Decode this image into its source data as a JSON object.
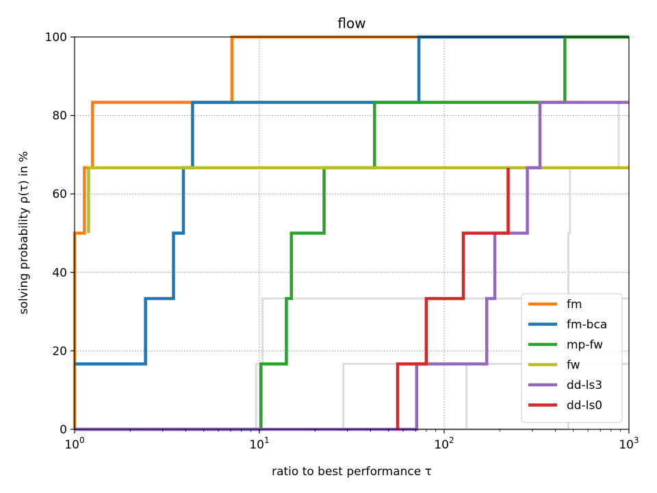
{
  "chart_data": {
    "type": "line",
    "title": "flow",
    "xlabel": "ratio to best performance τ",
    "ylabel": "solving probability ρ(τ) in %",
    "xscale": "log",
    "xlim": [
      1,
      1000
    ],
    "ylim": [
      0,
      100
    ],
    "x_ticks": [
      {
        "base": "10",
        "exp": "0",
        "value": 1
      },
      {
        "base": "10",
        "exp": "1",
        "value": 10
      },
      {
        "base": "10",
        "exp": "2",
        "value": 100
      },
      {
        "base": "10",
        "exp": "3",
        "value": 1000
      }
    ],
    "y_ticks": [
      "0",
      "20",
      "40",
      "60",
      "80",
      "100"
    ],
    "y_tick_values": [
      0,
      20,
      40,
      60,
      80,
      100
    ],
    "grid": "dotted",
    "legend_position": "bottom-right",
    "background_series": [
      {
        "color": "#dcdcdc",
        "steps": [
          [
            1,
            0
          ],
          [
            9.6,
            0
          ],
          [
            9.6,
            16.67
          ],
          [
            10.4,
            16.67
          ],
          [
            10.4,
            33.33
          ],
          [
            1000,
            33.33
          ]
        ]
      },
      {
        "color": "#dcdcdc",
        "steps": [
          [
            1,
            0
          ],
          [
            28.5,
            0
          ],
          [
            28.5,
            16.67
          ],
          [
            1000,
            16.67
          ]
        ]
      },
      {
        "color": "#dcdcdc",
        "steps": [
          [
            1,
            0
          ],
          [
            132,
            0
          ],
          [
            132,
            16.67
          ],
          [
            1000,
            16.67
          ]
        ]
      },
      {
        "color": "#dcdcdc",
        "steps": [
          [
            1,
            0
          ],
          [
            470,
            0
          ],
          [
            470,
            50
          ],
          [
            480,
            50
          ],
          [
            480,
            66.67
          ],
          [
            1000,
            66.67
          ]
        ]
      },
      {
        "color": "#dcdcdc",
        "steps": [
          [
            200,
            33.33
          ],
          [
            1000,
            33.33
          ]
        ]
      },
      {
        "color": "#dcdcdc",
        "steps": [
          [
            880,
            66.67
          ],
          [
            880,
            83.33
          ],
          [
            1000,
            83.33
          ]
        ]
      }
    ],
    "series": [
      {
        "name": "fm",
        "color": "#ff7f0e",
        "steps": [
          [
            1,
            0
          ],
          [
            1,
            50
          ],
          [
            1.13,
            50
          ],
          [
            1.13,
            66.67
          ],
          [
            1.25,
            66.67
          ],
          [
            1.25,
            83.33
          ],
          [
            7.1,
            83.33
          ],
          [
            7.1,
            100
          ],
          [
            1000,
            100
          ]
        ]
      },
      {
        "name": "fm-bca",
        "color": "#1f77b4",
        "steps": [
          [
            1,
            16.67
          ],
          [
            2.42,
            16.67
          ],
          [
            2.42,
            33.33
          ],
          [
            3.43,
            33.33
          ],
          [
            3.43,
            50
          ],
          [
            3.88,
            50
          ],
          [
            3.88,
            66.67
          ],
          [
            4.35,
            66.67
          ],
          [
            4.35,
            83.33
          ],
          [
            73,
            83.33
          ],
          [
            73,
            100
          ],
          [
            1000,
            100
          ]
        ]
      },
      {
        "name": "mp-fw",
        "color": "#2ca02c",
        "steps": [
          [
            1,
            0
          ],
          [
            10.2,
            0
          ],
          [
            10.2,
            16.67
          ],
          [
            14,
            16.67
          ],
          [
            14,
            33.33
          ],
          [
            14.9,
            33.33
          ],
          [
            14.9,
            50
          ],
          [
            22.4,
            50
          ],
          [
            22.4,
            66.67
          ],
          [
            42,
            66.67
          ],
          [
            42,
            83.33
          ],
          [
            450,
            83.33
          ],
          [
            450,
            100
          ],
          [
            1000,
            100
          ]
        ]
      },
      {
        "name": "fw",
        "color": "#bcbd22",
        "steps": [
          [
            1.19,
            50
          ],
          [
            1.19,
            66.67
          ],
          [
            1000,
            66.67
          ]
        ]
      },
      {
        "name": "dd-ls3",
        "color": "#9467bd",
        "steps": [
          [
            1,
            0
          ],
          [
            71,
            0
          ],
          [
            71,
            16.67
          ],
          [
            170,
            16.67
          ],
          [
            170,
            33.33
          ],
          [
            188,
            33.33
          ],
          [
            188,
            50
          ],
          [
            282,
            50
          ],
          [
            282,
            66.67
          ],
          [
            330,
            66.67
          ],
          [
            330,
            83.33
          ],
          [
            1000,
            83.33
          ]
        ]
      },
      {
        "name": "dd-ls0",
        "color": "#d62728",
        "steps": [
          [
            56,
            0
          ],
          [
            56,
            16.67
          ],
          [
            80,
            16.67
          ],
          [
            80,
            33.33
          ],
          [
            127,
            33.33
          ],
          [
            127,
            50
          ],
          [
            222,
            50
          ],
          [
            222,
            66.67
          ]
        ]
      }
    ]
  }
}
